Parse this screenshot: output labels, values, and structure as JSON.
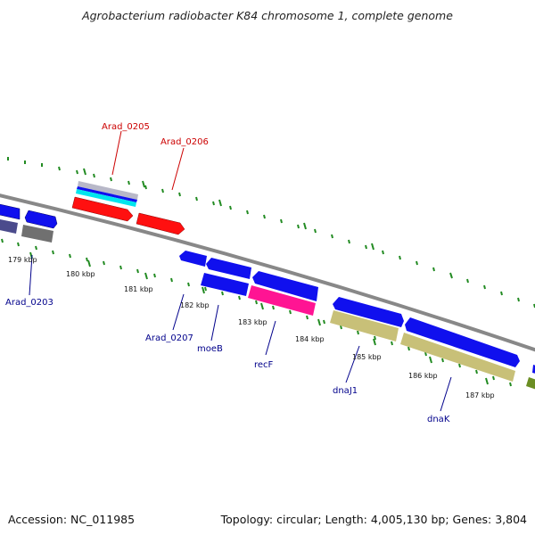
{
  "header": {
    "title": "Agrobacterium radiobacter K84 chromosome 1, complete genome"
  },
  "footer": {
    "accession": "Accession: NC_011985",
    "summary": "Topology: circular; Length: 4,005,130 bp; Genes: 3,804"
  },
  "colors": {
    "label_red": "#cc0000",
    "label_blue": "#00008b",
    "tick_green": "#228b22",
    "backbone": "#888888",
    "gene_blue": "#1010ee",
    "gene_red": "#ff1010",
    "gene_pink": "#ff1493",
    "gene_khaki": "#c8c078",
    "gene_grey": "#707070",
    "gene_navy": "#4b4b8c",
    "gene_cyan": "#00e5ee",
    "gene_silver": "#b8b8c8",
    "gene_olive": "#6b8e23"
  },
  "kbp_labels": [
    "179 kbp",
    "180 kbp",
    "181 kbp",
    "182 kbp",
    "183 kbp",
    "184 kbp",
    "185 kbp",
    "186 kbp",
    "187 kbp"
  ],
  "gene_labels": [
    {
      "text": "Arad_0205",
      "strand": "top"
    },
    {
      "text": "Arad_0206",
      "strand": "top"
    },
    {
      "text": "Arad_0203",
      "strand": "bottom"
    },
    {
      "text": "Arad_0207",
      "strand": "bottom"
    },
    {
      "text": "moeB",
      "strand": "bottom"
    },
    {
      "text": "recF",
      "strand": "bottom"
    },
    {
      "text": "dnaJ1",
      "strand": "bottom"
    },
    {
      "text": "dnaK",
      "strand": "bottom"
    }
  ]
}
